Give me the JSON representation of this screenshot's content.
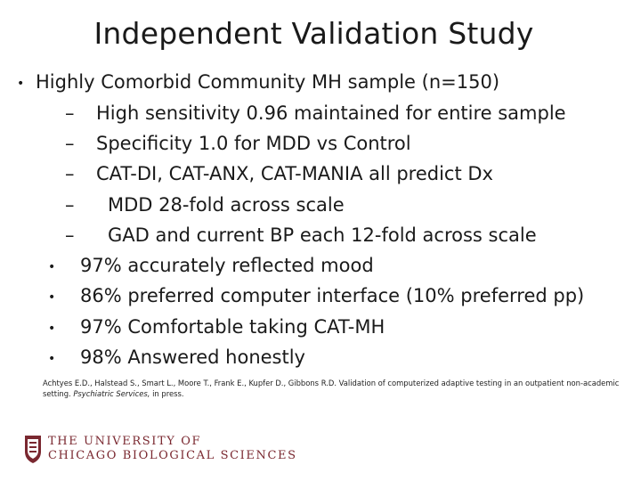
{
  "slide": {
    "title": "Independent Validation Study",
    "bullet_symbol": "•",
    "dash_symbol": "–",
    "main_bullet": "Highly Comorbid Community MH sample (n=150)",
    "sub_bullets": [
      "High sensitivity 0.96 maintained for entire sample",
      "Specificity 1.0 for MDD vs Control",
      "CAT-DI, CAT-ANX, CAT-MANIA all predict Dx",
      "MDD 28-fold across scale",
      "GAD and current BP each 12-fold across scale"
    ],
    "bullets": [
      "97% accurately reflected mood",
      "86% preferred computer interface (10% preferred pp)",
      "97% Comfortable taking CAT-MH",
      "98% Answered honestly"
    ]
  },
  "citation": {
    "text": "Achtyes E.D., Halstead S., Smart L., Moore T., Frank E., Kupfer D., Gibbons R.D. Validation of computerized adaptive testing in an outpatient non-academic setting.",
    "journal": "Psychiatric Services,",
    "tail": "in press."
  },
  "footer": {
    "logo_line1": "THE UNIVERSITY OF",
    "logo_line2": "CHICAGO BIOLOGICAL SCIENCES",
    "brand_color": "#7a2830"
  }
}
